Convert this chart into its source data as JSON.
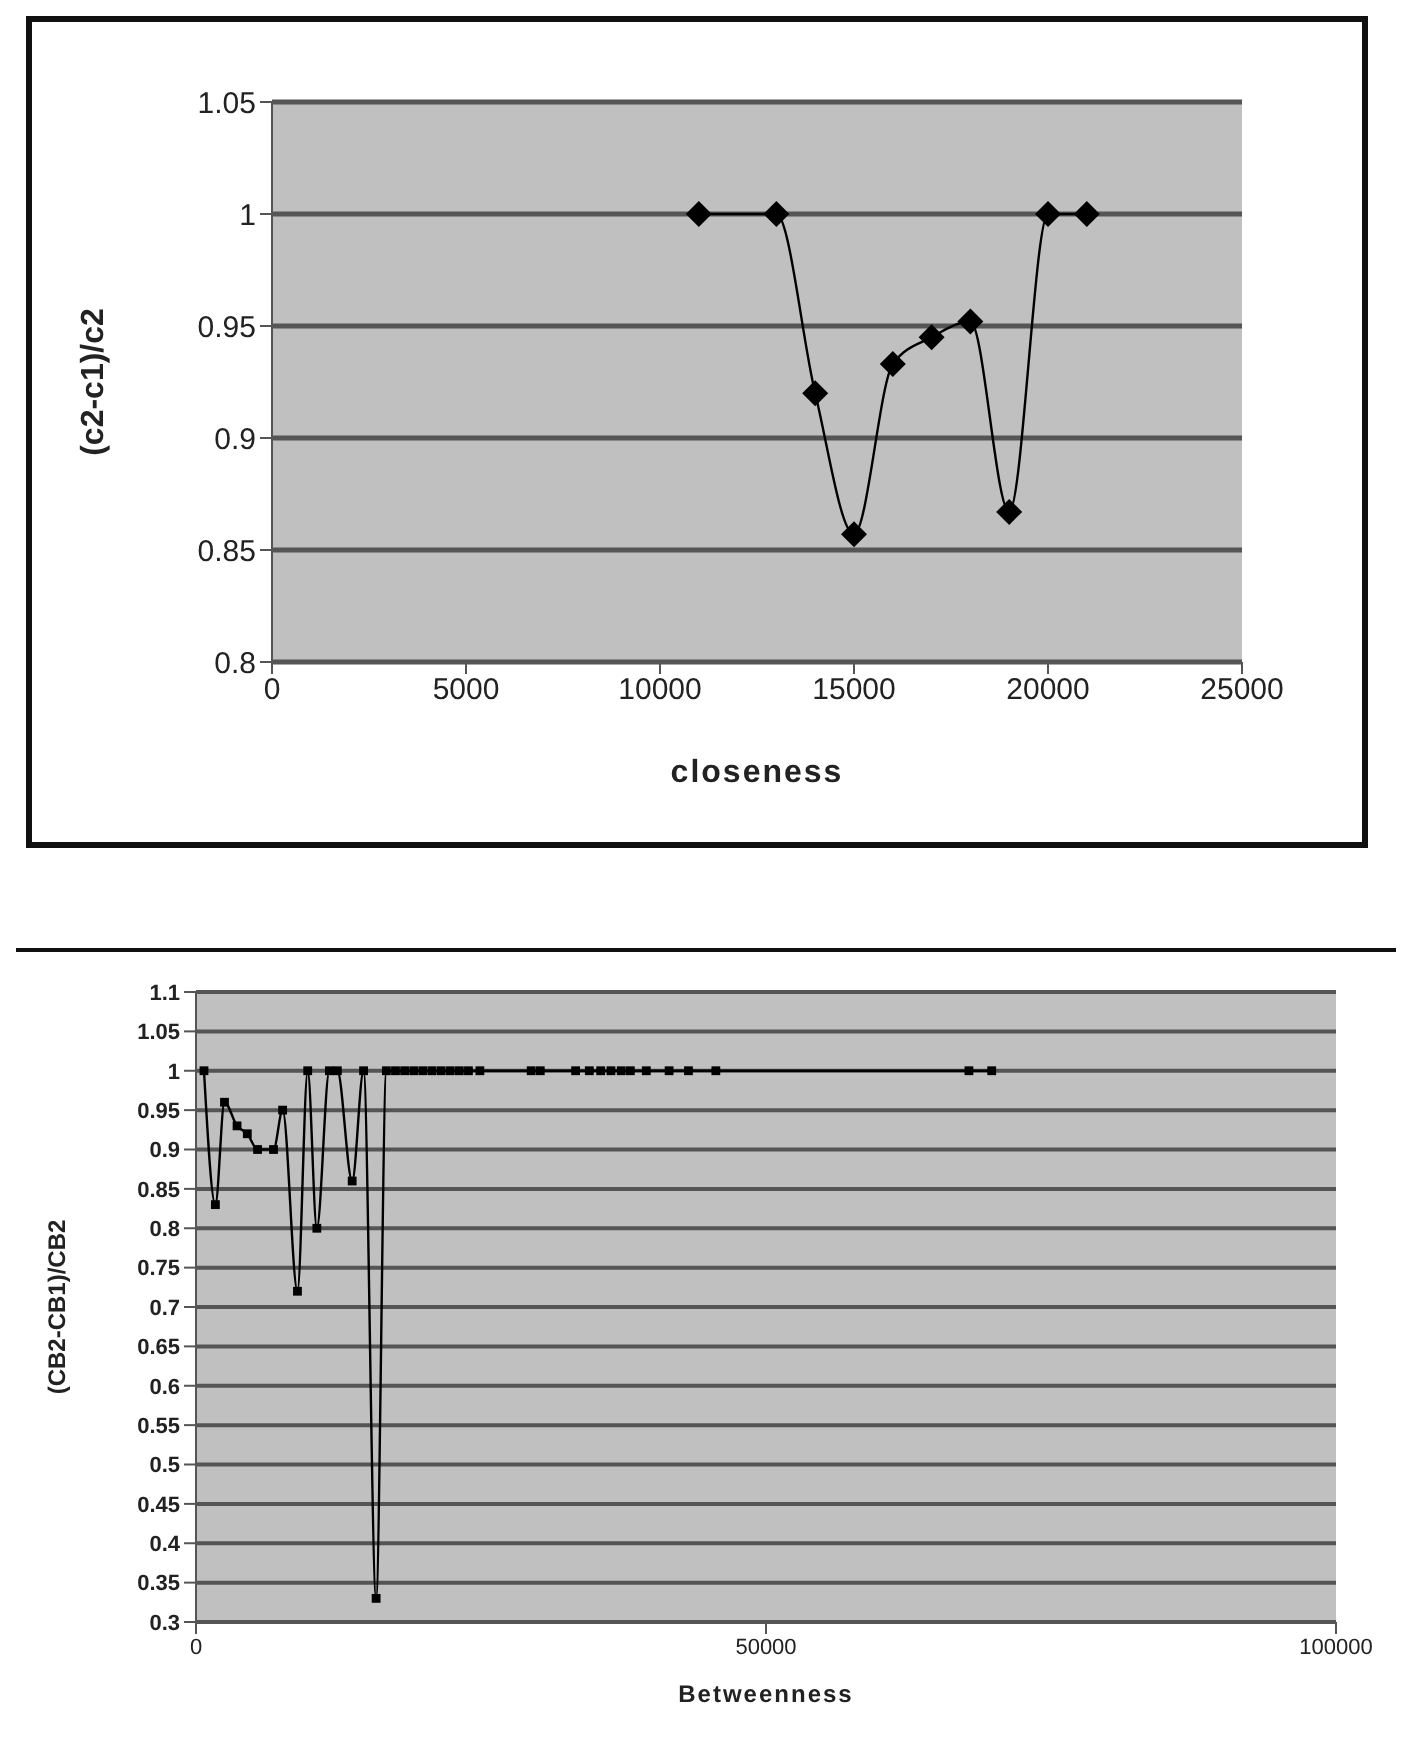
{
  "chart_data": [
    {
      "type": "line",
      "xlabel": "closeness",
      "ylabel": "(c2-c1)/c2",
      "x": [
        11000,
        13000,
        14000,
        15000,
        16000,
        17000,
        18000,
        19000,
        20000,
        21000
      ],
      "series": [
        {
          "color": "#000000",
          "values": [
            1,
            1,
            0.92,
            0.857,
            0.933,
            0.945,
            0.952,
            0.867,
            1,
            1
          ]
        }
      ],
      "xlim": [
        0,
        25000
      ],
      "xticks": [
        0,
        5000,
        10000,
        15000,
        20000,
        25000
      ],
      "ylim": [
        0.8,
        1.05
      ],
      "yticks": [
        0.8,
        0.85,
        0.9,
        0.95,
        1,
        1.05
      ],
      "grid": "y",
      "marker": "diamond",
      "line_style": "solid",
      "legend": false
    },
    {
      "type": "line",
      "xlabel": "Betweenness",
      "ylabel": "(CB2-CB1)/CB2",
      "x": [
        700,
        1700,
        2500,
        3600,
        4500,
        5400,
        6800,
        7600,
        8900,
        9800,
        10600,
        11700,
        12400,
        13700,
        14700,
        15800,
        16700,
        17500,
        18300,
        19100,
        19900,
        20700,
        21500,
        22300,
        23100,
        23900,
        24900,
        29400,
        30200,
        33300,
        34500,
        35500,
        36400,
        37300,
        38100,
        39500,
        41500,
        43200,
        45600,
        67800,
        69800
      ],
      "series": [
        {
          "color": "#000000",
          "values": [
            1,
            0.83,
            0.96,
            0.93,
            0.92,
            0.9,
            0.9,
            0.95,
            0.72,
            1,
            0.8,
            1,
            1,
            0.86,
            1,
            0.33,
            1,
            1,
            1,
            1,
            1,
            1,
            1,
            1,
            1,
            1,
            1,
            1,
            1,
            1,
            1,
            1,
            1,
            1,
            1,
            1,
            1,
            1,
            1,
            1,
            1
          ]
        }
      ],
      "xlim": [
        0,
        100000
      ],
      "xticks": [
        0,
        50000,
        100000
      ],
      "ylim": [
        0.3,
        1.1
      ],
      "yticks": [
        0.3,
        0.35,
        0.4,
        0.45,
        0.5,
        0.55,
        0.6,
        0.65,
        0.7,
        0.75,
        0.8,
        0.85,
        0.9,
        0.95,
        1,
        1.05,
        1.1
      ],
      "grid": "y",
      "marker": "square",
      "line_style": "solid",
      "legend": false
    }
  ]
}
